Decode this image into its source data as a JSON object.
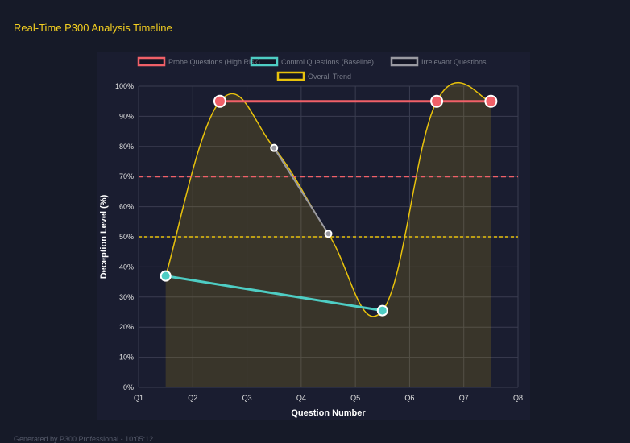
{
  "title": "Real-Time P300 Analysis Timeline",
  "footer": "Generated by P300 Professional - 10:05:12",
  "chart_data": {
    "type": "line",
    "xlabel": "Question Number",
    "ylabel": "Deception Level (%)",
    "x_ticks": [
      "Q1",
      "Q2",
      "Q3",
      "Q4",
      "Q5",
      "Q6",
      "Q7",
      "Q8"
    ],
    "y_ticks": [
      "0%",
      "10%",
      "20%",
      "30%",
      "40%",
      "50%",
      "60%",
      "70%",
      "80%",
      "90%",
      "100%"
    ],
    "ylim": [
      0,
      100
    ],
    "grid": true,
    "legend": "top",
    "series": [
      {
        "name": "Probe Questions (High Risk)",
        "color": "#f06068",
        "points": [
          [
            2.5,
            95
          ],
          [
            6.5,
            95
          ],
          [
            7.5,
            95
          ]
        ]
      },
      {
        "name": "Control Questions (Baseline)",
        "color": "#4ecdc4",
        "points": [
          [
            1.5,
            37
          ],
          [
            5.5,
            25.5
          ]
        ]
      },
      {
        "name": "Irrelevant Questions",
        "color": "#9a9aa2",
        "points": [
          [
            3.5,
            79.5
          ],
          [
            4.5,
            51
          ]
        ]
      },
      {
        "name": "Overall Trend",
        "color": "#e8c20c",
        "points": [
          [
            1.5,
            37
          ],
          [
            2.5,
            95
          ],
          [
            3.5,
            79.5
          ],
          [
            4.5,
            51
          ],
          [
            5.5,
            25.5
          ],
          [
            6.5,
            95
          ],
          [
            7.5,
            95
          ]
        ]
      }
    ],
    "thresholds": [
      {
        "value": 70,
        "color": "#f06068"
      },
      {
        "value": 50,
        "color": "#e8c20c"
      }
    ]
  }
}
